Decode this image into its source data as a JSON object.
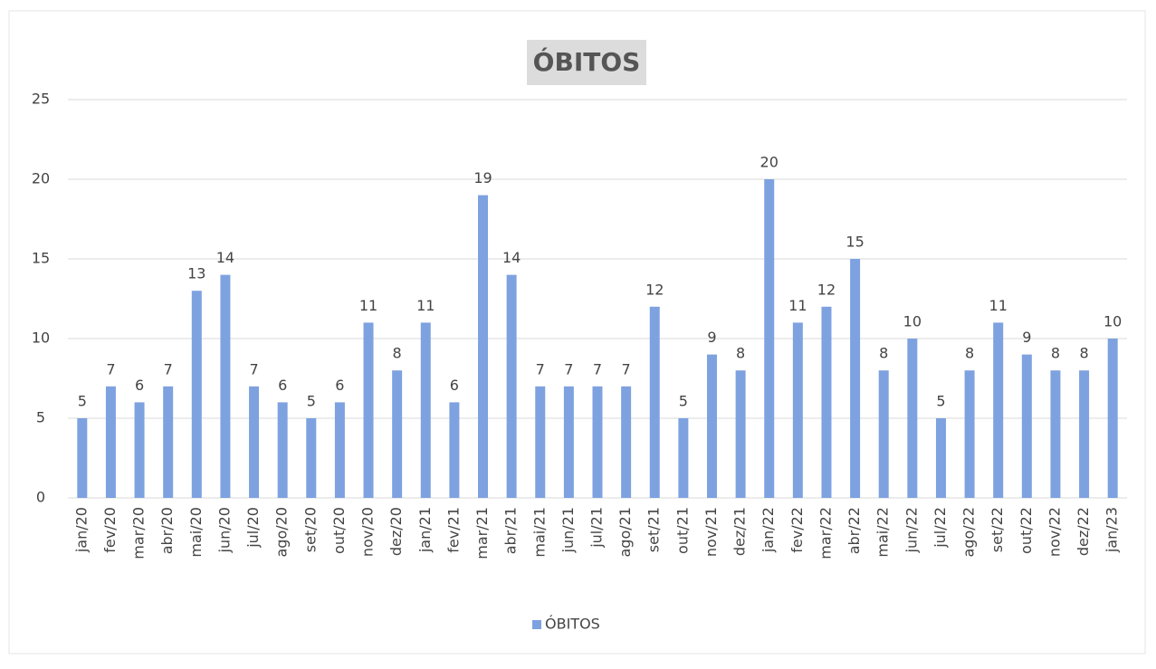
{
  "chart_data": {
    "type": "bar",
    "title": "ÓBITOS",
    "categories": [
      "jan/20",
      "fev/20",
      "mar/20",
      "abr/20",
      "mai/20",
      "jun/20",
      "jul/20",
      "ago/20",
      "set/20",
      "out/20",
      "nov/20",
      "dez/20",
      "jan/21",
      "fev/21",
      "mar/21",
      "abr/21",
      "mai/21",
      "jun/21",
      "jul/21",
      "ago/21",
      "set/21",
      "out/21",
      "nov/21",
      "dez/21",
      "jan/22",
      "fev/22",
      "mar/22",
      "abr/22",
      "mai/22",
      "jun/22",
      "jul/22",
      "ago/22",
      "set/22",
      "out/22",
      "nov/22",
      "dez/22",
      "jan/23"
    ],
    "series": [
      {
        "name": "ÓBITOS",
        "color": "#7ea2e0",
        "values": [
          5,
          7,
          6,
          7,
          13,
          14,
          7,
          6,
          5,
          6,
          11,
          8,
          11,
          6,
          19,
          14,
          7,
          7,
          7,
          7,
          12,
          5,
          9,
          8,
          20,
          11,
          12,
          15,
          8,
          10,
          5,
          8,
          11,
          9,
          8,
          8,
          10
        ]
      }
    ],
    "ylim": [
      0,
      25
    ],
    "yticks": [
      0,
      5,
      10,
      15,
      20,
      25
    ],
    "grid": true,
    "legend": "bottom"
  }
}
